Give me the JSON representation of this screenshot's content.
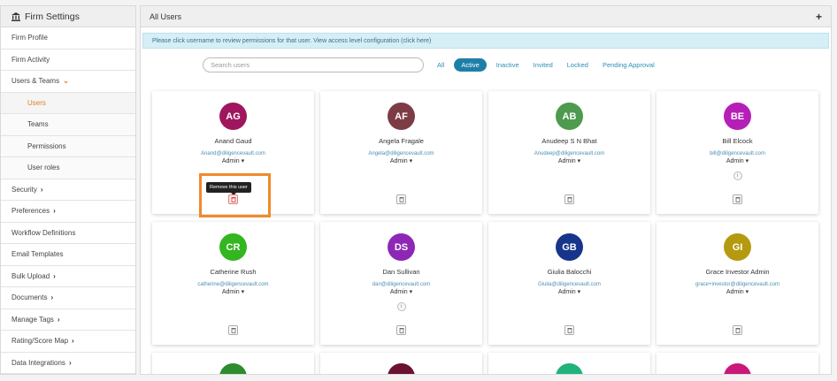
{
  "sidebar": {
    "title": "Firm Settings",
    "items": [
      {
        "label": "Firm Profile"
      },
      {
        "label": "Firm Activity"
      },
      {
        "label": "Users & Teams"
      },
      {
        "label": "Users"
      },
      {
        "label": "Teams"
      },
      {
        "label": "Permissions"
      },
      {
        "label": "User roles"
      },
      {
        "label": "Security"
      },
      {
        "label": "Preferences"
      },
      {
        "label": "Workflow Definitions"
      },
      {
        "label": "Email Templates"
      },
      {
        "label": "Bulk Upload"
      },
      {
        "label": "Documents"
      },
      {
        "label": "Manage Tags"
      },
      {
        "label": "Rating/Score Map"
      },
      {
        "label": "Data Integrations"
      }
    ]
  },
  "main": {
    "title": "All Users",
    "add_label": "+",
    "info": "Please click username to review permissions for that user. View access level configuration (click here)",
    "search_placeholder": "Search users",
    "filters": [
      "All",
      "Active",
      "Inactive",
      "Invited",
      "Locked",
      "Pending Approval"
    ],
    "tooltip": "Remove this user",
    "info_dot": "i"
  },
  "users": [
    {
      "initials": "AG",
      "name": "Anand Gaud",
      "email": "Anand@diligencevault.com",
      "role": "Admin ▾",
      "color": "#a0165e"
    },
    {
      "initials": "AF",
      "name": "Angela Fragale",
      "email": "Angela@diligencevault.com",
      "role": "Admin ▾",
      "color": "#7d3c45"
    },
    {
      "initials": "AB",
      "name": "Anudeep S N Bhat",
      "email": "Anudeep@diligencevault.com",
      "role": "Admin ▾",
      "color": "#4e9a4e"
    },
    {
      "initials": "BE",
      "name": "Bill Elcock",
      "email": "bill@diligencevault.com",
      "role": "Admin ▾",
      "color": "#b51fb8"
    },
    {
      "initials": "CR",
      "name": "Catherine Rush",
      "email": "catherine@diligencevault.com",
      "role": "Admin ▾",
      "color": "#33b61f"
    },
    {
      "initials": "DS",
      "name": "Dan Sullivan",
      "email": "dan@diligencevault.com",
      "role": "Admin ▾",
      "color": "#8d27b6"
    },
    {
      "initials": "GB",
      "name": "Giulia Balocchi",
      "email": "Giulia@diligencevault.com",
      "role": "Admin ▾",
      "color": "#17358a"
    },
    {
      "initials": "GI",
      "name": "Grace Investor Admin",
      "email": "grace+investor@diligencevault.com",
      "role": "Admin ▾",
      "color": "#b59a0f"
    }
  ],
  "partial_colors": [
    "#2e8b2e",
    "#6b1233",
    "#1fb37a",
    "#c9177a"
  ]
}
